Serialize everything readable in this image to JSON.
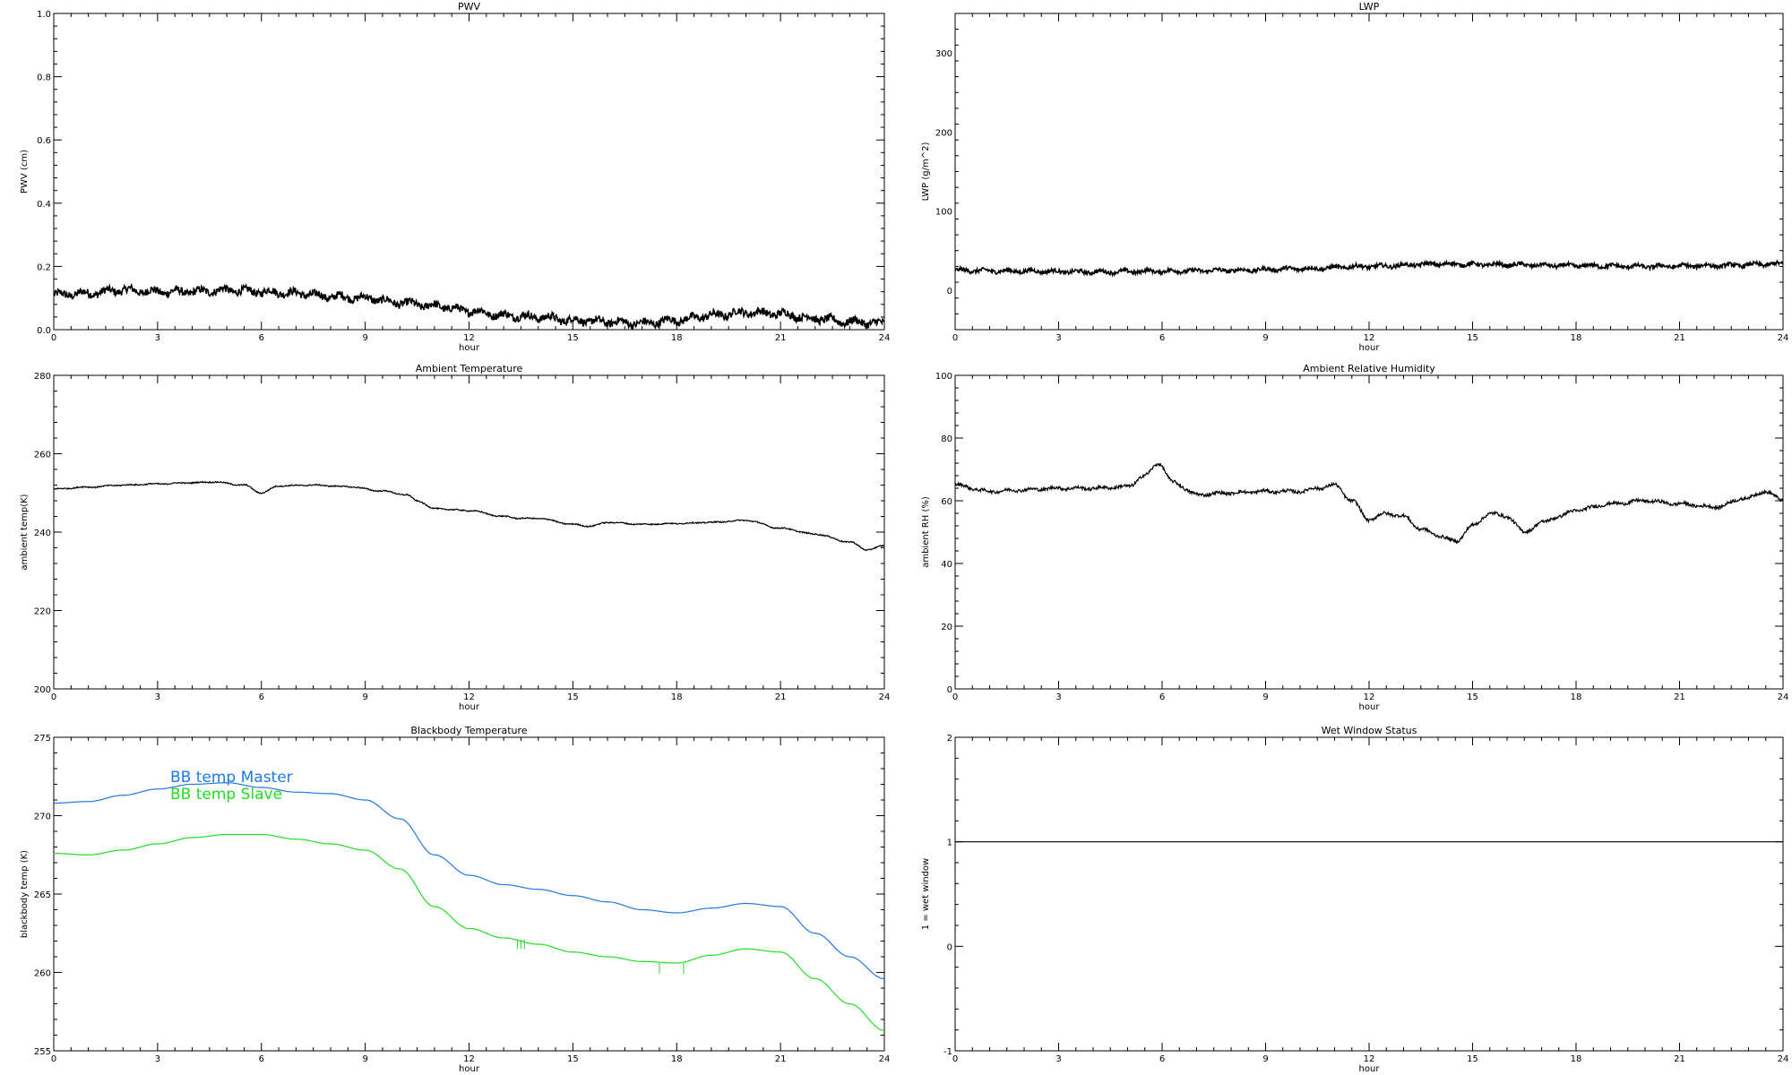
{
  "chart_data": [
    {
      "id": "pwv",
      "type": "line",
      "title": "PWV",
      "xlabel": "hour",
      "ylabel": "PWV (cm)",
      "xlim": [
        0,
        24
      ],
      "ylim": [
        0,
        1.0
      ],
      "xticks": [
        0,
        3,
        6,
        9,
        12,
        15,
        18,
        21,
        24
      ],
      "yticks": [
        0.0,
        0.2,
        0.4,
        0.6,
        0.8,
        1.0
      ],
      "ytick_labels": [
        "0.0",
        "0.2",
        "0.4",
        "0.6",
        "0.8",
        "1.0"
      ],
      "noise": 0.012,
      "series": [
        {
          "color": "#000000",
          "x": [
            0,
            1,
            2,
            3,
            4,
            5,
            6,
            7,
            8,
            9,
            10,
            11,
            12,
            13,
            14,
            15,
            16,
            17,
            18,
            19,
            20,
            21,
            22,
            23,
            24
          ],
          "y": [
            0.11,
            0.115,
            0.125,
            0.12,
            0.12,
            0.125,
            0.12,
            0.115,
            0.105,
            0.1,
            0.085,
            0.075,
            0.06,
            0.045,
            0.04,
            0.03,
            0.025,
            0.02,
            0.03,
            0.045,
            0.055,
            0.05,
            0.035,
            0.025,
            0.02
          ]
        }
      ]
    },
    {
      "id": "lwp",
      "type": "line",
      "title": "LWP",
      "xlabel": "hour",
      "ylabel": "LWP (g/m^2)",
      "xlim": [
        0,
        24
      ],
      "ylim": [
        -50,
        350
      ],
      "xticks": [
        0,
        3,
        6,
        9,
        12,
        15,
        18,
        21,
        24
      ],
      "yticks": [
        0,
        100,
        200,
        300
      ],
      "ytick_labels": [
        "0",
        "100",
        "200",
        "300"
      ],
      "noise": 2.5,
      "series": [
        {
          "color": "#000000",
          "x": [
            0,
            2,
            4,
            6,
            8,
            10,
            12,
            14,
            16,
            18,
            20,
            22,
            24
          ],
          "y": [
            25,
            24,
            23,
            24,
            25,
            27,
            30,
            33,
            32,
            31,
            30,
            31,
            33
          ]
        }
      ]
    },
    {
      "id": "ambient-temp",
      "type": "line",
      "title": "Ambient Temperature",
      "xlabel": "hour",
      "ylabel": "ambient temp(K)",
      "xlim": [
        0,
        24
      ],
      "ylim": [
        200,
        280
      ],
      "xticks": [
        0,
        3,
        6,
        9,
        12,
        15,
        18,
        21,
        24
      ],
      "yticks": [
        200,
        220,
        240,
        260,
        280
      ],
      "ytick_labels": [
        "200",
        "220",
        "240",
        "260",
        "280"
      ],
      "noise": 0.15,
      "series": [
        {
          "color": "#000000",
          "x": [
            0,
            1,
            2,
            3,
            4,
            4.6,
            5.5,
            6,
            6.5,
            7.5,
            8.5,
            9.5,
            10.2,
            10.5,
            11,
            12,
            13,
            13.5,
            14,
            15,
            15.5,
            16,
            17,
            18,
            19,
            20,
            21,
            22,
            23,
            23.5,
            24
          ],
          "y": [
            251,
            251.5,
            252,
            252.3,
            252.6,
            252.8,
            252,
            250,
            251.8,
            252,
            251.6,
            250.5,
            249.5,
            248,
            246,
            245.5,
            244,
            243.5,
            243.5,
            242,
            241.5,
            242.5,
            242,
            242.2,
            242.5,
            243,
            241,
            239.5,
            237.5,
            235.5,
            236.5
          ]
        }
      ]
    },
    {
      "id": "ambient-rh",
      "type": "line",
      "title": "Ambient Relative Humidity",
      "xlabel": "hour",
      "ylabel": "ambient RH (%)",
      "xlim": [
        0,
        24
      ],
      "ylim": [
        0,
        100
      ],
      "xticks": [
        0,
        3,
        6,
        9,
        12,
        15,
        18,
        21,
        24
      ],
      "yticks": [
        0,
        20,
        40,
        60,
        80,
        100
      ],
      "ytick_labels": [
        "0",
        "20",
        "40",
        "60",
        "80",
        "100"
      ],
      "noise": 0.5,
      "series": [
        {
          "color": "#000000",
          "x": [
            0,
            1,
            2,
            3,
            4,
            5,
            5.5,
            5.9,
            6.3,
            7,
            8,
            9,
            10,
            10.5,
            11,
            11.5,
            12,
            12.5,
            13,
            13.5,
            14,
            14.5,
            15,
            15.5,
            16,
            16.5,
            17,
            17.5,
            18,
            19,
            20,
            21,
            22,
            23,
            23.5,
            24
          ],
          "y": [
            65,
            63,
            63.5,
            64,
            64,
            64.5,
            68,
            72,
            66,
            62,
            62.5,
            63,
            63,
            64,
            65,
            60,
            54,
            56,
            55,
            51,
            49,
            47,
            52,
            56,
            55,
            50,
            53,
            55,
            57,
            59,
            60,
            59,
            58,
            61,
            63,
            60
          ]
        }
      ]
    },
    {
      "id": "bb-temp",
      "type": "line",
      "title": "Blackbody Temperature",
      "xlabel": "hour",
      "ylabel": "blackbody temp (K)",
      "xlim": [
        0,
        24
      ],
      "ylim": [
        255,
        275
      ],
      "xticks": [
        0,
        3,
        6,
        9,
        12,
        15,
        18,
        21,
        24
      ],
      "yticks": [
        255,
        260,
        265,
        270,
        275
      ],
      "ytick_labels": [
        "255",
        "260",
        "265",
        "270",
        "275"
      ],
      "noise": 0,
      "legend": "top-left",
      "series": [
        {
          "name": "BB temp Master",
          "color": "#1f78e6",
          "x": [
            0,
            1,
            2,
            3,
            4,
            5,
            6,
            7,
            8,
            9,
            10,
            11,
            12,
            13,
            14,
            15,
            16,
            17,
            18,
            19,
            20,
            21,
            22,
            23,
            24
          ],
          "y": [
            270.8,
            270.9,
            271.3,
            271.7,
            272.0,
            272.1,
            271.8,
            271.5,
            271.4,
            271.0,
            269.8,
            267.5,
            266.2,
            265.6,
            265.3,
            264.9,
            264.5,
            264.0,
            263.8,
            264.1,
            264.4,
            264.2,
            262.5,
            261.0,
            259.6
          ]
        },
        {
          "name": "BB temp Slave",
          "color": "#22dd22",
          "x": [
            0,
            1,
            2,
            3,
            4,
            5,
            6,
            7,
            8,
            9,
            10,
            11,
            12,
            13,
            14,
            15,
            16,
            17,
            18,
            19,
            20,
            21,
            22,
            23,
            24
          ],
          "y": [
            267.6,
            267.5,
            267.8,
            268.2,
            268.6,
            268.8,
            268.8,
            268.5,
            268.2,
            267.8,
            266.6,
            264.2,
            262.8,
            262.2,
            261.8,
            261.3,
            261.0,
            260.7,
            260.6,
            261.1,
            261.5,
            261.3,
            259.6,
            258.0,
            256.3
          ]
        }
      ],
      "spikes": [
        {
          "x": 13.4,
          "from": 262.1,
          "to": 261.5
        },
        {
          "x": 13.5,
          "from": 262.1,
          "to": 261.5
        },
        {
          "x": 13.6,
          "from": 262.1,
          "to": 261.5
        },
        {
          "x": 17.5,
          "from": 260.6,
          "to": 259.9
        },
        {
          "x": 18.2,
          "from": 260.6,
          "to": 259.9
        }
      ]
    },
    {
      "id": "wet-window",
      "type": "line",
      "title": "Wet Window Status",
      "xlabel": "hour",
      "ylabel": "1 = wet window",
      "xlim": [
        0,
        24
      ],
      "ylim": [
        -1,
        2
      ],
      "xticks": [
        0,
        3,
        6,
        9,
        12,
        15,
        18,
        21,
        24
      ],
      "yticks": [
        -1,
        0,
        1,
        2
      ],
      "ytick_labels": [
        "-1",
        "0",
        "1",
        "2"
      ],
      "noise": 0,
      "series": [
        {
          "color": "#000000",
          "x": [
            0,
            24
          ],
          "y": [
            1,
            1
          ]
        }
      ]
    }
  ]
}
